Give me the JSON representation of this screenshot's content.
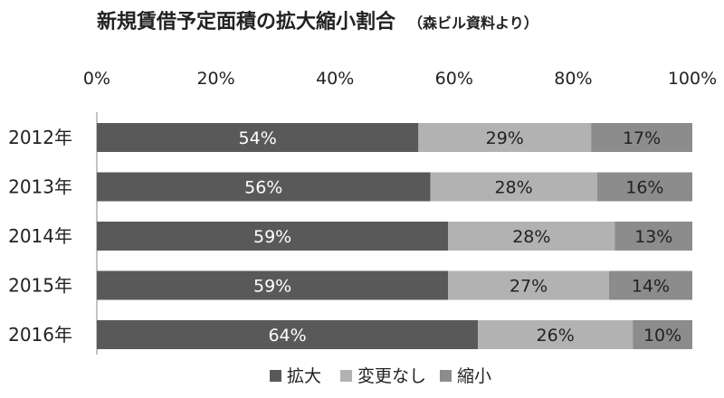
{
  "chart_data": {
    "type": "bar",
    "orientation": "horizontal",
    "stacked": true,
    "percent_stacked": true,
    "title": "新規賃借予定面積の拡大縮小割合",
    "subtitle": "（森ビル資料より）",
    "categories": [
      "2012年",
      "2013年",
      "2014年",
      "2015年",
      "2016年"
    ],
    "series": [
      {
        "name": "拡大",
        "values": [
          54,
          56,
          59,
          59,
          64
        ],
        "labels": [
          "54%",
          "56%",
          "59%",
          "59%",
          "64%"
        ],
        "color": "#595959",
        "label_color": "#ffffff"
      },
      {
        "name": "変更なし",
        "values": [
          29,
          28,
          28,
          27,
          26
        ],
        "labels": [
          "29%",
          "28%",
          "28%",
          "27%",
          "26%"
        ],
        "color": "#b2b2b2",
        "label_color": "#222222"
      },
      {
        "name": "縮小",
        "values": [
          17,
          16,
          13,
          14,
          10
        ],
        "labels": [
          "17%",
          "16%",
          "13%",
          "14%",
          "10%"
        ],
        "color": "#8c8c8c",
        "label_color": "#222222"
      }
    ],
    "xlim": [
      0,
      100
    ],
    "x_ticks": [
      "0%",
      "20%",
      "40%",
      "60%",
      "80%",
      "100%"
    ],
    "x_axis_position": "top",
    "grid": false,
    "legend_position": "bottom"
  }
}
